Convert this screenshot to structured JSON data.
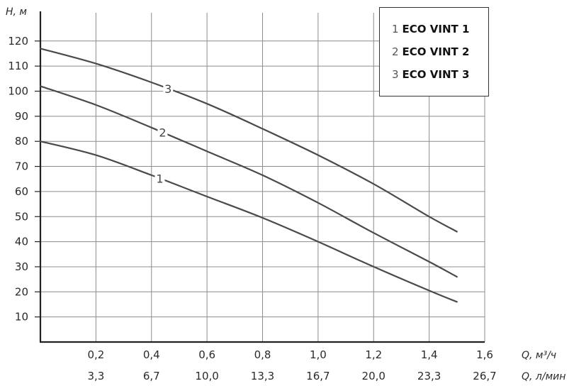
{
  "chart_data": {
    "type": "line",
    "ylabel": "H, м",
    "xlabel_top": "Q, м³/ч",
    "xlabel_bottom": "Q, л/мин",
    "xlim": [
      0,
      1.6
    ],
    "ylim": [
      0,
      125
    ],
    "grid": true,
    "legend_position": "top-right",
    "y_ticks": [
      10,
      20,
      30,
      40,
      50,
      60,
      70,
      80,
      90,
      100,
      110,
      120
    ],
    "x_ticks_top": [
      "0,2",
      "0,4",
      "0,6",
      "0,8",
      "1,0",
      "1,2",
      "1,4",
      "1,6"
    ],
    "x_ticks_bottom": [
      "3,3",
      "6,7",
      "10,0",
      "13,3",
      "16,7",
      "20,0",
      "23,3",
      "26,7"
    ],
    "x_tick_values": [
      0.2,
      0.4,
      0.6,
      0.8,
      1.0,
      1.2,
      1.4,
      1.6
    ],
    "legend": [
      {
        "num": "1",
        "name": "ECO VINT 1"
      },
      {
        "num": "2",
        "name": "ECO VINT 2"
      },
      {
        "num": "3",
        "name": "ECO VINT 3"
      }
    ],
    "series": [
      {
        "label": "1",
        "label_at": 0.43,
        "x": [
          0,
          0.2,
          0.4,
          0.6,
          0.8,
          1.0,
          1.2,
          1.4,
          1.5
        ],
        "y": [
          80,
          74.5,
          66.5,
          58,
          49.5,
          40,
          30,
          20.5,
          16
        ]
      },
      {
        "label": "2",
        "label_at": 0.44,
        "x": [
          0,
          0.2,
          0.4,
          0.6,
          0.8,
          1.0,
          1.2,
          1.4,
          1.5
        ],
        "y": [
          102,
          94.5,
          85.5,
          76,
          66.5,
          55.5,
          43.5,
          32,
          26
        ]
      },
      {
        "label": "3",
        "label_at": 0.46,
        "x": [
          0,
          0.2,
          0.4,
          0.6,
          0.8,
          1.0,
          1.2,
          1.4,
          1.5
        ],
        "y": [
          117,
          111,
          103.5,
          95,
          85,
          74.5,
          63,
          50,
          44
        ]
      }
    ]
  }
}
